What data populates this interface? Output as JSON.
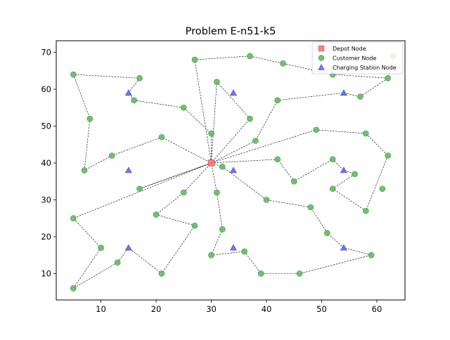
{
  "chart_data": {
    "type": "scatter",
    "title": "Problem E-n51-k5",
    "xlabel": "",
    "ylabel": "",
    "xlim": [
      1.9,
      65.1
    ],
    "ylim": [
      2.85,
      73.15
    ],
    "xticks": [
      10,
      20,
      30,
      40,
      50,
      60
    ],
    "yticks": [
      10,
      20,
      30,
      40,
      50,
      60,
      70
    ],
    "grid": false,
    "legend_position": "top-right",
    "legend": [
      {
        "label": "Depot Node",
        "marker": "square",
        "color": "#f37a7a"
      },
      {
        "label": "Customer Node",
        "marker": "circle",
        "color": "#5cb85c"
      },
      {
        "label": "Charging Station Node",
        "marker": "triangle",
        "color": "#6666f0"
      }
    ],
    "depot": {
      "x": 30,
      "y": 40
    },
    "customers": [
      {
        "x": 37,
        "y": 52
      },
      {
        "x": 49,
        "y": 49
      },
      {
        "x": 52,
        "y": 64
      },
      {
        "x": 20,
        "y": 26
      },
      {
        "x": 40,
        "y": 30
      },
      {
        "x": 21,
        "y": 47
      },
      {
        "x": 17,
        "y": 63
      },
      {
        "x": 31,
        "y": 62
      },
      {
        "x": 52,
        "y": 33
      },
      {
        "x": 51,
        "y": 21
      },
      {
        "x": 42,
        "y": 41
      },
      {
        "x": 31,
        "y": 32
      },
      {
        "x": 5,
        "y": 25
      },
      {
        "x": 12,
        "y": 42
      },
      {
        "x": 36,
        "y": 16
      },
      {
        "x": 52,
        "y": 41
      },
      {
        "x": 27,
        "y": 23
      },
      {
        "x": 17,
        "y": 33
      },
      {
        "x": 13,
        "y": 13
      },
      {
        "x": 57,
        "y": 58
      },
      {
        "x": 62,
        "y": 42
      },
      {
        "x": 42,
        "y": 57
      },
      {
        "x": 16,
        "y": 57
      },
      {
        "x": 8,
        "y": 52
      },
      {
        "x": 7,
        "y": 38
      },
      {
        "x": 27,
        "y": 68
      },
      {
        "x": 30,
        "y": 48
      },
      {
        "x": 43,
        "y": 67
      },
      {
        "x": 58,
        "y": 48
      },
      {
        "x": 58,
        "y": 27
      },
      {
        "x": 37,
        "y": 69
      },
      {
        "x": 38,
        "y": 46
      },
      {
        "x": 46,
        "y": 10
      },
      {
        "x": 61,
        "y": 33
      },
      {
        "x": 62,
        "y": 63
      },
      {
        "x": 63,
        "y": 69
      },
      {
        "x": 32,
        "y": 22
      },
      {
        "x": 45,
        "y": 35
      },
      {
        "x": 59,
        "y": 15
      },
      {
        "x": 5,
        "y": 6
      },
      {
        "x": 10,
        "y": 17
      },
      {
        "x": 21,
        "y": 10
      },
      {
        "x": 5,
        "y": 64
      },
      {
        "x": 30,
        "y": 15
      },
      {
        "x": 39,
        "y": 10
      },
      {
        "x": 32,
        "y": 39
      },
      {
        "x": 25,
        "y": 32
      },
      {
        "x": 25,
        "y": 55
      },
      {
        "x": 48,
        "y": 28
      },
      {
        "x": 56,
        "y": 37
      }
    ],
    "charging_stations": [
      {
        "x": 15,
        "y": 59
      },
      {
        "x": 34,
        "y": 59
      },
      {
        "x": 54,
        "y": 59
      },
      {
        "x": 15,
        "y": 38
      },
      {
        "x": 34,
        "y": 38
      },
      {
        "x": 54,
        "y": 38
      },
      {
        "x": 15,
        "y": 17
      },
      {
        "x": 34,
        "y": 17
      },
      {
        "x": 54,
        "y": 17
      }
    ],
    "routes": [
      [
        [
          30,
          40
        ],
        [
          27,
          68
        ],
        [
          37,
          69
        ],
        [
          43,
          67
        ],
        [
          52,
          64
        ],
        [
          62,
          63
        ],
        [
          63,
          69
        ],
        [
          62,
          63
        ],
        [
          57,
          58
        ],
        [
          54,
          59
        ],
        [
          42,
          57
        ],
        [
          38,
          46
        ],
        [
          30,
          40
        ]
      ],
      [
        [
          30,
          40
        ],
        [
          30,
          48
        ],
        [
          25,
          55
        ],
        [
          16,
          57
        ],
        [
          15,
          59
        ],
        [
          17,
          63
        ],
        [
          5,
          64
        ],
        [
          8,
          52
        ],
        [
          7,
          38
        ],
        [
          12,
          42
        ],
        [
          21,
          47
        ],
        [
          30,
          40
        ]
      ],
      [
        [
          30,
          40
        ],
        [
          31,
          62
        ],
        [
          37,
          52
        ],
        [
          30,
          40
        ]
      ],
      [
        [
          30,
          40
        ],
        [
          49,
          49
        ],
        [
          58,
          48
        ],
        [
          62,
          42
        ],
        [
          58,
          27
        ],
        [
          52,
          33
        ],
        [
          56,
          37
        ],
        [
          54,
          38
        ],
        [
          52,
          41
        ],
        [
          45,
          35
        ],
        [
          42,
          41
        ],
        [
          30,
          40
        ]
      ],
      [
        [
          30,
          40
        ],
        [
          32,
          39
        ],
        [
          40,
          30
        ],
        [
          48,
          28
        ],
        [
          51,
          21
        ],
        [
          54,
          17
        ],
        [
          59,
          15
        ],
        [
          46,
          10
        ],
        [
          39,
          10
        ],
        [
          36,
          16
        ],
        [
          30,
          15
        ],
        [
          32,
          22
        ],
        [
          31,
          32
        ],
        [
          30,
          40
        ]
      ],
      [
        [
          30,
          40
        ],
        [
          5,
          25
        ],
        [
          10,
          17
        ],
        [
          5,
          6
        ],
        [
          13,
          13
        ],
        [
          15,
          17
        ],
        [
          21,
          10
        ],
        [
          27,
          23
        ],
        [
          20,
          26
        ],
        [
          25,
          32
        ],
        [
          30,
          40
        ]
      ],
      [
        [
          30,
          40
        ],
        [
          17,
          33
        ],
        [
          30,
          40
        ]
      ]
    ]
  }
}
